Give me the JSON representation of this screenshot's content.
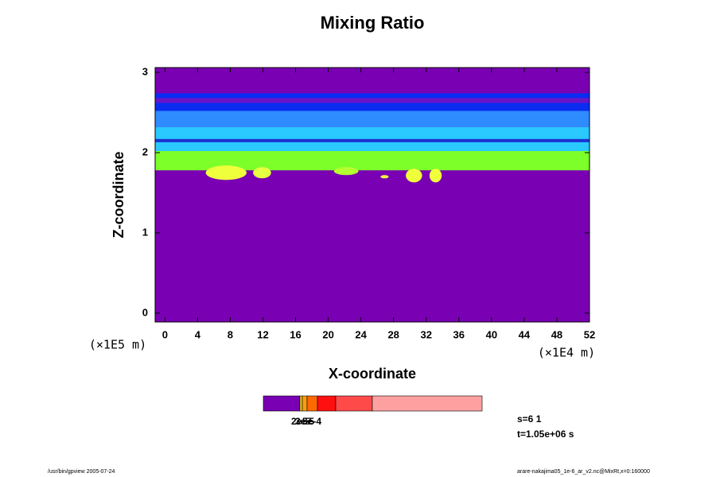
{
  "chart_data": {
    "type": "contour",
    "title": "Mixing Ratio",
    "x_label": "X-coordinate",
    "y_label": "Z-coordinate",
    "x_unit": "(×1E4 m)",
    "y_unit": "(×1E5 m)",
    "xlim": [
      -1.2,
      52
    ],
    "ylim": [
      -0.11,
      3.06
    ],
    "xticks": [
      0,
      4,
      8,
      12,
      16,
      20,
      24,
      28,
      32,
      36,
      40,
      44,
      48,
      52
    ],
    "yticks": [
      0,
      1,
      2,
      3
    ],
    "background_color": "#7a00b4",
    "bands": [
      {
        "z": [
          1.78,
          2.02
        ],
        "color": "#7dff2a"
      },
      {
        "z": [
          2.02,
          2.32
        ],
        "color": "#29c8ff"
      },
      {
        "z": [
          2.13,
          2.17
        ],
        "color": "#1e30d0"
      },
      {
        "z": [
          2.32,
          2.52
        ],
        "color": "#2f8cff"
      },
      {
        "z": [
          2.52,
          2.74
        ],
        "color": "#0a2cf0"
      },
      {
        "z": [
          2.62,
          2.68
        ],
        "color": "#6a14c8"
      }
    ],
    "blobs": [
      {
        "x": [
          5,
          10
        ],
        "z": [
          1.66,
          1.84
        ],
        "color": "#f0ff3c"
      },
      {
        "x": [
          10.8,
          13
        ],
        "z": [
          1.68,
          1.82
        ],
        "color": "#e6ff40"
      },
      {
        "x": [
          20.7,
          23.7
        ],
        "z": [
          1.72,
          1.82
        ],
        "color": "#b4ff30"
      },
      {
        "x": [
          26.4,
          27.4
        ],
        "z": [
          1.68,
          1.72
        ],
        "color": "#f0ff3c"
      },
      {
        "x": [
          29.5,
          31.5
        ],
        "z": [
          1.63,
          1.8
        ],
        "color": "#f0ff3c"
      },
      {
        "x": [
          32.4,
          33.9
        ],
        "z": [
          1.63,
          1.8
        ],
        "color": "#f0ff3c"
      }
    ],
    "colorbar": {
      "colors": [
        "#7a00b4",
        "#e6d020",
        "#ff9a10",
        "#ff6a00",
        "#ff1010",
        "#ff4a4a",
        "#ffa0a0"
      ],
      "labels": [
        "2e-5",
        "3e-5",
        "5e-4"
      ]
    },
    "info": [
      "s=6 1",
      "t=1.05e+06 s"
    ],
    "footer_left": "/usr/bin/gpview 2005-07-24",
    "footer_right": "arare-nakajima05_1e-6_ar_v2.nc@MixRt,x=0:160000"
  }
}
